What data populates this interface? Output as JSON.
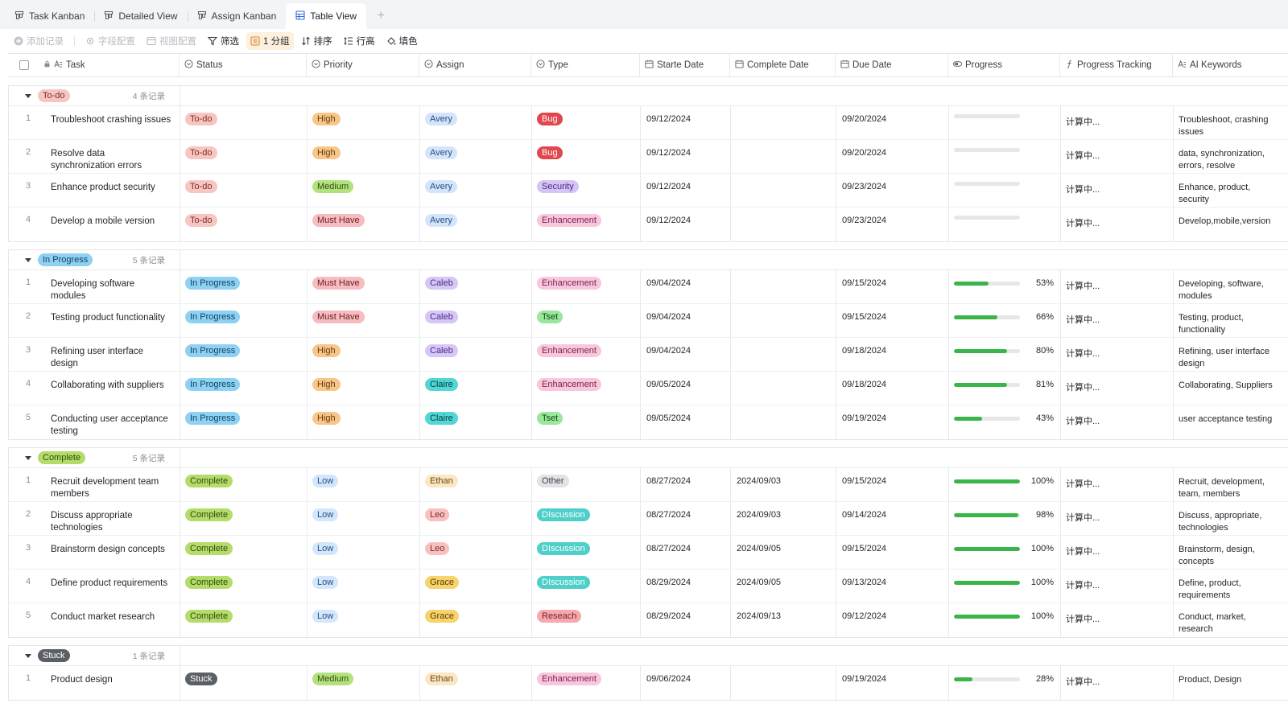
{
  "tabs": [
    {
      "label": "Task Kanban",
      "icon": "kanban-icon",
      "active": false
    },
    {
      "label": "Detailed View",
      "icon": "kanban-icon",
      "active": false
    },
    {
      "label": "Assign Kanban",
      "icon": "kanban-icon",
      "active": false
    },
    {
      "label": "Table View",
      "icon": "grid-table-icon",
      "active": true
    }
  ],
  "toolbar": {
    "add_record": "添加记录",
    "field_config": "字段配置",
    "view_config": "视图配置",
    "filter": "筛选",
    "group": "1 分组",
    "sort": "排序",
    "row_height": "行高",
    "fill_color": "填色"
  },
  "columns": [
    "Task",
    "Status",
    "Priority",
    "Assign",
    "Type",
    "Starte Date",
    "Complete Date",
    "Due Date",
    "Progress",
    "Progress Tracking",
    "AI Keywords"
  ],
  "colors": {
    "todo": "#f8c6c1",
    "inprogress": "#8ed1f2",
    "complete": "#b5dc6a",
    "stuck": "#5b5f66",
    "high": "#f7c68a",
    "medium": "#b3e27d",
    "musthave": "#f6bcc0",
    "low": "#d3e6fb",
    "bug": "#e0484d",
    "security": "#d5c4f4",
    "enhancement": "#f8c7dd",
    "tset": "#9be79d",
    "other": "#e2e3e6",
    "discussion": "#4ecfc9",
    "reseach": "#f7a9ad",
    "avery": "#d4e4f9",
    "caleb": "#d6c7f5",
    "claire": "#52d6d6",
    "ethan": "#fbe6c6",
    "leo": "#f8c1bf",
    "grace": "#f7d36b",
    "progress_fill": "#3ab54a"
  },
  "groups": [
    {
      "name": "To-do",
      "count": "4 条记录",
      "rows": [
        {
          "n": "1",
          "task": "Troubleshoot crashing issues",
          "status": "To-do",
          "priority": "High",
          "assign": "Avery",
          "type": "Bug",
          "start": "09/12/2024",
          "complete": "",
          "due": "09/20/2024",
          "progress": 0,
          "progress_text": "",
          "tracking": "计算中...",
          "keywords": "Troubleshoot, crashing issues"
        },
        {
          "n": "2",
          "task": "Resolve data synchronization errors",
          "status": "To-do",
          "priority": "High",
          "assign": "Avery",
          "type": "Bug",
          "start": "09/12/2024",
          "complete": "",
          "due": "09/20/2024",
          "progress": 0,
          "progress_text": "",
          "tracking": "计算中...",
          "keywords": "data, synchronization, errors, resolve"
        },
        {
          "n": "3",
          "task": "Enhance product security",
          "status": "To-do",
          "priority": "Medium",
          "assign": "Avery",
          "type": "Security",
          "start": "09/12/2024",
          "complete": "",
          "due": "09/23/2024",
          "progress": 0,
          "progress_text": "",
          "tracking": "计算中...",
          "keywords": "Enhance, product, security"
        },
        {
          "n": "4",
          "task": "Develop a mobile version",
          "status": "To-do",
          "priority": "Must Have",
          "assign": "Avery",
          "type": "Enhancement",
          "start": "09/12/2024",
          "complete": "",
          "due": "09/23/2024",
          "progress": 0,
          "progress_text": "",
          "tracking": "计算中...",
          "keywords": "Develop,mobile,version"
        }
      ]
    },
    {
      "name": "In Progress",
      "count": "5 条记录",
      "rows": [
        {
          "n": "1",
          "task": "Developing software modules",
          "status": "In Progress",
          "priority": "Must Have",
          "assign": "Caleb",
          "type": "Enhancement",
          "start": "09/04/2024",
          "complete": "",
          "due": "09/15/2024",
          "progress": 53,
          "progress_text": "53%",
          "tracking": "计算中...",
          "keywords": "Developing, software, modules"
        },
        {
          "n": "2",
          "task": "Testing product functionality",
          "status": "In Progress",
          "priority": "Must Have",
          "assign": "Caleb",
          "type": "Tset",
          "start": "09/04/2024",
          "complete": "",
          "due": "09/15/2024",
          "progress": 66,
          "progress_text": "66%",
          "tracking": "计算中...",
          "keywords": "Testing, product, functionality"
        },
        {
          "n": "3",
          "task": "Refining user interface design",
          "status": "In Progress",
          "priority": "High",
          "assign": "Caleb",
          "type": "Enhancement",
          "start": "09/04/2024",
          "complete": "",
          "due": "09/18/2024",
          "progress": 80,
          "progress_text": "80%",
          "tracking": "计算中...",
          "keywords": "Refining, user interface design"
        },
        {
          "n": "4",
          "task": "Collaborating with suppliers",
          "status": "In Progress",
          "priority": "High",
          "assign": "Claire",
          "type": "Enhancement",
          "start": "09/05/2024",
          "complete": "",
          "due": "09/18/2024",
          "progress": 81,
          "progress_text": "81%",
          "tracking": "计算中...",
          "keywords": "Collaborating, Suppliers"
        },
        {
          "n": "5",
          "task": "Conducting user acceptance testing",
          "status": "In Progress",
          "priority": "High",
          "assign": "Claire",
          "type": "Tset",
          "start": "09/05/2024",
          "complete": "",
          "due": "09/19/2024",
          "progress": 43,
          "progress_text": "43%",
          "tracking": "计算中...",
          "keywords": "user acceptance testing"
        }
      ]
    },
    {
      "name": "Complete",
      "count": "5 条记录",
      "rows": [
        {
          "n": "1",
          "task": "Recruit development team members",
          "status": "Complete",
          "priority": "Low",
          "assign": "Ethan",
          "type": "Other",
          "start": "08/27/2024",
          "complete": "2024/09/03",
          "due": "09/15/2024",
          "progress": 100,
          "progress_text": "100%",
          "tracking": "计算中...",
          "keywords": "Recruit, development, team, members"
        },
        {
          "n": "2",
          "task": "Discuss appropriate technologies",
          "status": "Complete",
          "priority": "Low",
          "assign": "Leo",
          "type": "DIscussion",
          "start": "08/27/2024",
          "complete": "2024/09/03",
          "due": "09/14/2024",
          "progress": 98,
          "progress_text": "98%",
          "tracking": "计算中...",
          "keywords": "Discuss, appropriate, technologies"
        },
        {
          "n": "3",
          "task": "Brainstorm design concepts",
          "status": "Complete",
          "priority": "Low",
          "assign": "Leo",
          "type": "DIscussion",
          "start": "08/27/2024",
          "complete": "2024/09/05",
          "due": "09/15/2024",
          "progress": 100,
          "progress_text": "100%",
          "tracking": "计算中...",
          "keywords": "Brainstorm, design, concepts"
        },
        {
          "n": "4",
          "task": "Define product requirements",
          "status": "Complete",
          "priority": "Low",
          "assign": "Grace",
          "type": "DIscussion",
          "start": "08/29/2024",
          "complete": "2024/09/05",
          "due": "09/13/2024",
          "progress": 100,
          "progress_text": "100%",
          "tracking": "计算中...",
          "keywords": "Define, product, requirements"
        },
        {
          "n": "5",
          "task": "Conduct market research",
          "status": "Complete",
          "priority": "Low",
          "assign": "Grace",
          "type": "Reseach",
          "start": "08/29/2024",
          "complete": "2024/09/13",
          "due": "09/12/2024",
          "progress": 100,
          "progress_text": "100%",
          "tracking": "计算中...",
          "keywords": "Conduct, market, research"
        }
      ]
    },
    {
      "name": "Stuck",
      "count": "1 条记录",
      "rows": [
        {
          "n": "1",
          "task": "Product design",
          "status": "Stuck",
          "priority": "Medium",
          "assign": "Ethan",
          "type": "Enhancement",
          "start": "09/06/2024",
          "complete": "",
          "due": "09/19/2024",
          "progress": 28,
          "progress_text": "28%",
          "tracking": "计算中...",
          "keywords": "Product, Design"
        }
      ]
    }
  ]
}
